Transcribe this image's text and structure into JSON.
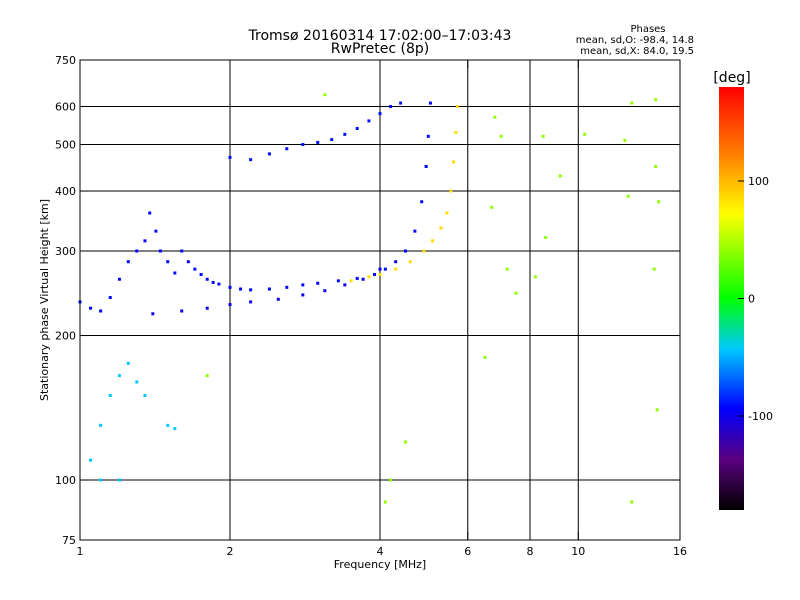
{
  "chart_data": {
    "type": "scatter",
    "title": "Tromsø 20160314 17:02:00–17:03:43",
    "subtitle": "RwPretec (8p)",
    "xlabel": "Frequency [MHz]",
    "ylabel": "Stationary phase Virtual Height [km]",
    "x_scale": "log",
    "y_scale": "log",
    "xlim": [
      1,
      16
    ],
    "ylim": [
      75,
      750
    ],
    "x_ticks": [
      1,
      2,
      4,
      6,
      8,
      10,
      16
    ],
    "x_tick_labels": [
      "1",
      "2",
      "4",
      "6",
      "8",
      "10",
      "16"
    ],
    "x_gridlines": [
      2,
      4,
      6,
      8,
      10
    ],
    "y_ticks": [
      75,
      100,
      200,
      300,
      400,
      500,
      600,
      750
    ],
    "y_tick_labels": [
      "75",
      "100",
      "200",
      "300",
      "400",
      "500",
      "600",
      "750"
    ],
    "y_gridlines": [
      100,
      200,
      300,
      400,
      500,
      600
    ],
    "grid": true,
    "stats": {
      "header": "Phases",
      "line_o": "mean, sd,O: -98.4, 14.8",
      "line_x": "mean, sd,X:  84.0, 19.5"
    },
    "colorbar": {
      "label": "[deg]",
      "range": [
        -180,
        180
      ],
      "ticks": [
        100,
        0,
        -100
      ],
      "tick_labels": [
        "100",
        "0",
        "-100"
      ]
    },
    "series": [
      {
        "trace": "O-mode F-region trace (blue)",
        "phase": -98,
        "points": [
          [
            1.0,
            235
          ],
          [
            1.05,
            228
          ],
          [
            1.1,
            225
          ],
          [
            1.15,
            240
          ],
          [
            1.2,
            262
          ],
          [
            1.25,
            285
          ],
          [
            1.3,
            300
          ],
          [
            1.35,
            315
          ],
          [
            1.38,
            360
          ],
          [
            1.42,
            330
          ],
          [
            1.45,
            300
          ],
          [
            1.5,
            285
          ],
          [
            1.55,
            270
          ],
          [
            1.6,
            300
          ],
          [
            1.65,
            285
          ],
          [
            1.7,
            275
          ],
          [
            1.75,
            268
          ],
          [
            1.8,
            262
          ],
          [
            1.85,
            258
          ],
          [
            1.9,
            256
          ],
          [
            2.0,
            252
          ],
          [
            2.1,
            250
          ],
          [
            2.2,
            249
          ],
          [
            2.4,
            250
          ],
          [
            2.6,
            252
          ],
          [
            2.8,
            255
          ],
          [
            3.0,
            257
          ],
          [
            3.3,
            260
          ],
          [
            3.6,
            263
          ],
          [
            3.9,
            268
          ],
          [
            4.1,
            275
          ],
          [
            4.3,
            285
          ],
          [
            4.5,
            300
          ],
          [
            4.7,
            330
          ],
          [
            4.85,
            380
          ],
          [
            4.95,
            450
          ],
          [
            5.0,
            520
          ],
          [
            5.05,
            610
          ]
        ]
      },
      {
        "trace": "O-mode lower ridge (blue)",
        "phase": -105,
        "points": [
          [
            1.4,
            222
          ],
          [
            1.6,
            225
          ],
          [
            1.8,
            228
          ],
          [
            2.0,
            232
          ],
          [
            2.2,
            235
          ],
          [
            2.5,
            238
          ],
          [
            2.8,
            243
          ],
          [
            3.1,
            248
          ],
          [
            3.4,
            255
          ],
          [
            3.7,
            262
          ],
          [
            4.0,
            275
          ]
        ]
      },
      {
        "trace": "X-mode trace (yellow)",
        "phase": 84,
        "points": [
          [
            3.5,
            260
          ],
          [
            3.8,
            265
          ],
          [
            4.0,
            268
          ],
          [
            4.3,
            275
          ],
          [
            4.6,
            285
          ],
          [
            4.9,
            300
          ],
          [
            5.1,
            315
          ],
          [
            5.3,
            335
          ],
          [
            5.45,
            360
          ],
          [
            5.55,
            400
          ],
          [
            5.62,
            460
          ],
          [
            5.68,
            530
          ],
          [
            5.72,
            600
          ]
        ]
      },
      {
        "trace": "upper multiple trace (blue)",
        "phase": -95,
        "points": [
          [
            2.0,
            470
          ],
          [
            2.2,
            465
          ],
          [
            2.4,
            478
          ],
          [
            2.6,
            490
          ],
          [
            2.8,
            500
          ],
          [
            3.0,
            505
          ],
          [
            3.2,
            512
          ],
          [
            3.4,
            525
          ],
          [
            3.6,
            540
          ],
          [
            3.8,
            560
          ],
          [
            4.0,
            580
          ],
          [
            4.2,
            600
          ],
          [
            4.4,
            610
          ]
        ]
      },
      {
        "trace": "low-frequency echoes (mixed)",
        "phase": -40,
        "points": [
          [
            1.05,
            110
          ],
          [
            1.1,
            130
          ],
          [
            1.15,
            150
          ],
          [
            1.2,
            165
          ],
          [
            1.25,
            175
          ],
          [
            1.3,
            160
          ],
          [
            1.35,
            150
          ],
          [
            1.1,
            100
          ],
          [
            1.2,
            100
          ],
          [
            1.5,
            130
          ],
          [
            1.55,
            128
          ]
        ]
      },
      {
        "trace": "scattered echoes",
        "phase": 40,
        "points": [
          [
            6.5,
            180
          ],
          [
            6.7,
            370
          ],
          [
            7.2,
            275
          ],
          [
            7.5,
            245
          ],
          [
            8.2,
            265
          ],
          [
            8.6,
            320
          ],
          [
            9.2,
            430
          ],
          [
            10.3,
            525
          ],
          [
            12.4,
            510
          ],
          [
            12.6,
            390
          ],
          [
            12.8,
            90
          ],
          [
            14.2,
            275
          ],
          [
            14.3,
            450
          ],
          [
            14.5,
            380
          ],
          [
            14.4,
            140
          ],
          [
            6.8,
            570
          ],
          [
            7.0,
            520
          ],
          [
            8.5,
            520
          ],
          [
            12.8,
            610
          ],
          [
            14.3,
            620
          ],
          [
            3.1,
            635
          ],
          [
            4.2,
            100
          ],
          [
            4.1,
            90
          ],
          [
            4.5,
            120
          ],
          [
            1.8,
            165
          ]
        ]
      }
    ]
  }
}
